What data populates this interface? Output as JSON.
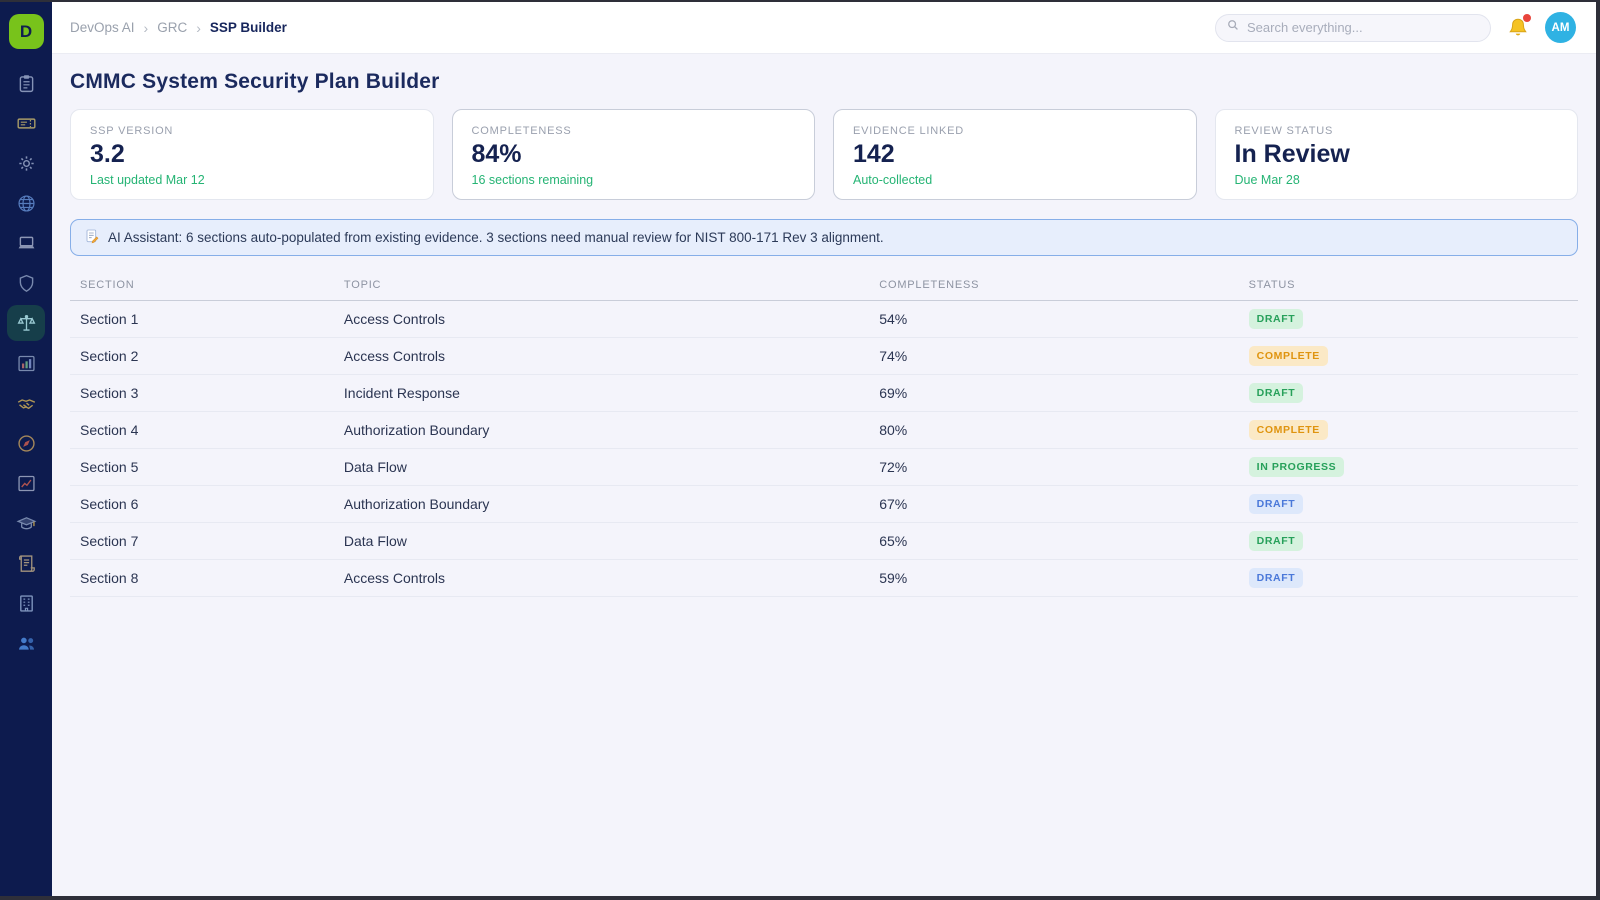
{
  "app": {
    "logo_letter": "D"
  },
  "header": {
    "breadcrumb": [
      "DevOps AI",
      "GRC",
      "SSP Builder"
    ],
    "search_placeholder": "Search everything...",
    "avatar_initials": "AM"
  },
  "sidebar": {
    "items": [
      {
        "icon": "clipboard-icon",
        "active": false
      },
      {
        "icon": "ticket-icon",
        "active": false
      },
      {
        "icon": "gear-icon",
        "active": false
      },
      {
        "icon": "globe-icon",
        "active": false
      },
      {
        "icon": "laptop-icon",
        "active": false
      },
      {
        "icon": "shield-icon",
        "active": false
      },
      {
        "icon": "scales-icon",
        "active": true
      },
      {
        "icon": "bar-chart-icon",
        "active": false
      },
      {
        "icon": "handshake-icon",
        "active": false
      },
      {
        "icon": "compass-icon",
        "active": false
      },
      {
        "icon": "chart-line-icon",
        "active": false
      },
      {
        "icon": "graduation-cap-icon",
        "active": false
      },
      {
        "icon": "scroll-icon",
        "active": false
      },
      {
        "icon": "building-icon",
        "active": false
      },
      {
        "icon": "users-icon",
        "active": false
      }
    ]
  },
  "page": {
    "title": "CMMC System Security Plan Builder"
  },
  "stats": [
    {
      "label": "SSP VERSION",
      "value": "3.2",
      "sub": "Last updated Mar 12"
    },
    {
      "label": "COMPLETENESS",
      "value": "84%",
      "sub": "16 sections remaining"
    },
    {
      "label": "EVIDENCE LINKED",
      "value": "142",
      "sub": "Auto-collected"
    },
    {
      "label": "REVIEW STATUS",
      "value": "In Review",
      "sub": "Due Mar 28"
    }
  ],
  "banner": {
    "icon": "memo-icon",
    "text": "AI Assistant: 6 sections auto-populated from existing evidence. 3 sections need manual review for NIST 800-171 Rev 3 alignment."
  },
  "table": {
    "columns": [
      "SECTION",
      "TOPIC",
      "COMPLETENESS",
      "STATUS"
    ],
    "rows": [
      {
        "section": "Section 1",
        "topic": "Access Controls",
        "completeness": "54%",
        "status": "DRAFT",
        "status_style": "green"
      },
      {
        "section": "Section 2",
        "topic": "Access Controls",
        "completeness": "74%",
        "status": "COMPLETE",
        "status_style": "amber"
      },
      {
        "section": "Section 3",
        "topic": "Incident Response",
        "completeness": "69%",
        "status": "DRAFT",
        "status_style": "green"
      },
      {
        "section": "Section 4",
        "topic": "Authorization Boundary",
        "completeness": "80%",
        "status": "COMPLETE",
        "status_style": "amber"
      },
      {
        "section": "Section 5",
        "topic": "Data Flow",
        "completeness": "72%",
        "status": "IN PROGRESS",
        "status_style": "green"
      },
      {
        "section": "Section 6",
        "topic": "Authorization Boundary",
        "completeness": "67%",
        "status": "DRAFT",
        "status_style": "blue"
      },
      {
        "section": "Section 7",
        "topic": "Data Flow",
        "completeness": "65%",
        "status": "DRAFT",
        "status_style": "green"
      },
      {
        "section": "Section 8",
        "topic": "Access Controls",
        "completeness": "59%",
        "status": "DRAFT",
        "status_style": "blue"
      }
    ]
  },
  "colors": {
    "brand_green": "#78c31b",
    "sidebar_navy": "#0d1b4e",
    "heading_navy": "#1b2a5e",
    "positive_green": "#25b474",
    "avatar_cyan": "#2fb2e3",
    "badge_green_bg": "#d5f2de",
    "badge_green_text": "#27a05a",
    "badge_amber_bg": "#fbe9c6",
    "badge_amber_text": "#df940f",
    "badge_blue_bg": "#dde8fb",
    "badge_blue_text": "#4a78d9",
    "banner_bg": "#e7eefc",
    "banner_border": "#86aee8"
  }
}
